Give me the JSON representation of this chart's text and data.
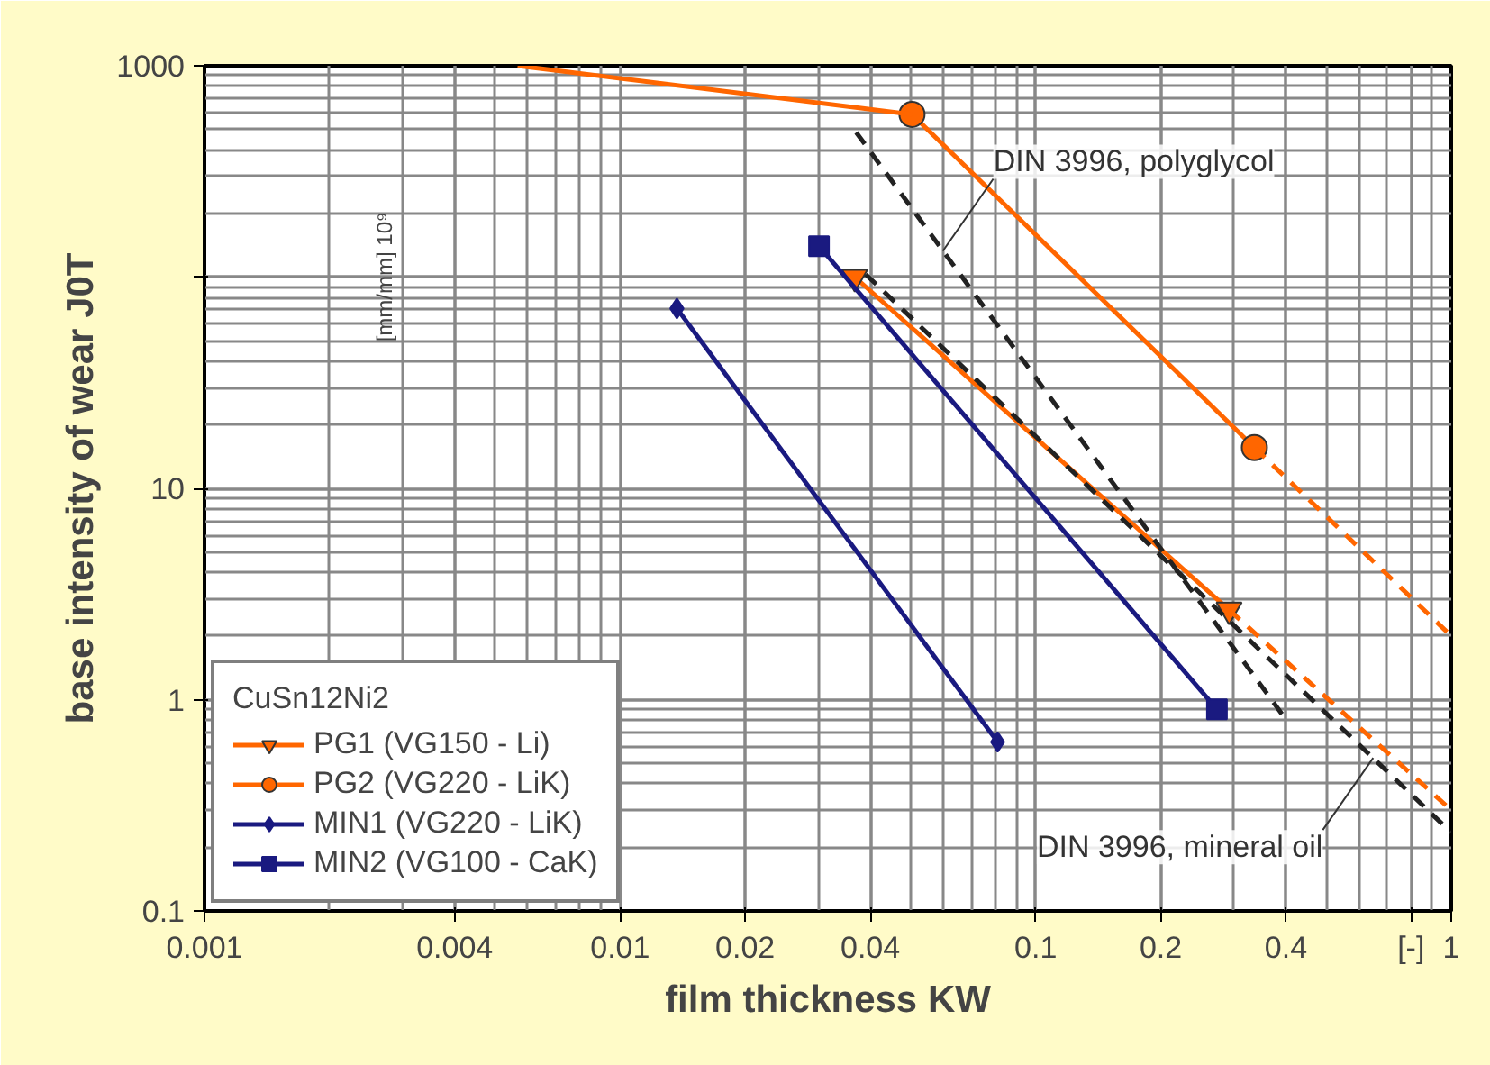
{
  "chart_data": {
    "type": "line",
    "xlabel": "film thickness KW",
    "ylabel": "base intensity of wear J0T",
    "log": "xy",
    "grid": true,
    "legend": "bottom left",
    "legend_title": "CuSn12Ni2",
    "line_style": "solid",
    "xlim": [
      0.001,
      1
    ],
    "ylim": [
      0.1,
      1000
    ],
    "xticks": [
      0.001,
      0.004,
      0.01,
      0.02,
      0.04,
      0.1,
      0.2,
      0.4,
      {
        "value": 0.8,
        "label": "[-]"
      },
      1
    ],
    "yticks": [
      0.1,
      1,
      10,
      {
        "value": 100,
        "label": null
      },
      1000
    ],
    "series": [
      {
        "name": "PG1 (VG150 - Li)",
        "color": "#ff6600",
        "marker": "triangle",
        "x": [
          0.0367,
          0.292
        ],
        "values": [
          100,
          2.66
        ]
      },
      {
        "name": "PG2 (VG220 - LiK)",
        "color": "#ff6600",
        "marker": "circle",
        "x": [
          0.0504,
          0.336
        ],
        "values": [
          589,
          15.6
        ]
      },
      {
        "name": "MIN1 (VG220 - LiK)",
        "color": "#1a1a80",
        "marker": "diamond",
        "x": [
          0.0137,
          0.081
        ],
        "values": [
          71,
          0.63
        ]
      },
      {
        "name": "MIN2 (VG100 - CaK)",
        "color": "#1a1a80",
        "marker": "square",
        "x": [
          0.0301,
          0.273
        ],
        "values": [
          140,
          0.9
        ]
      },
      {
        "color": "#ff6600",
        "marker": "none",
        "x": [
          0.00567,
          0.0504
        ],
        "values": [
          1000,
          589
        ]
      },
      {
        "color": "#ff6600",
        "marker": "none",
        "line_style": "dashed",
        "x": [
          0.292,
          1
        ],
        "values": [
          2.66,
          0.3
        ]
      },
      {
        "color": "#ff6600",
        "marker": "none",
        "line_style": "dashed",
        "x": [
          0.336,
          1
        ],
        "values": [
          15.6,
          2.0
        ]
      },
      {
        "color": "#222222",
        "marker": "none",
        "line_style": "dashed",
        "x": [
          0.037,
          0.394
        ],
        "values": [
          484,
          0.84
        ]
      },
      {
        "color": "#222222",
        "marker": "none",
        "line_style": "dashed",
        "x": [
          0.039,
          1
        ],
        "values": [
          103,
          0.235
        ]
      }
    ],
    "annotations": [
      {
        "text": "DIN 3996, polyglycol",
        "x": 0.0598,
        "y": 133
      },
      {
        "text": "DIN 3996, mineral oil",
        "x": 0.649,
        "y": 0.53
      },
      "[mm/mm] 10⁹"
    ]
  }
}
